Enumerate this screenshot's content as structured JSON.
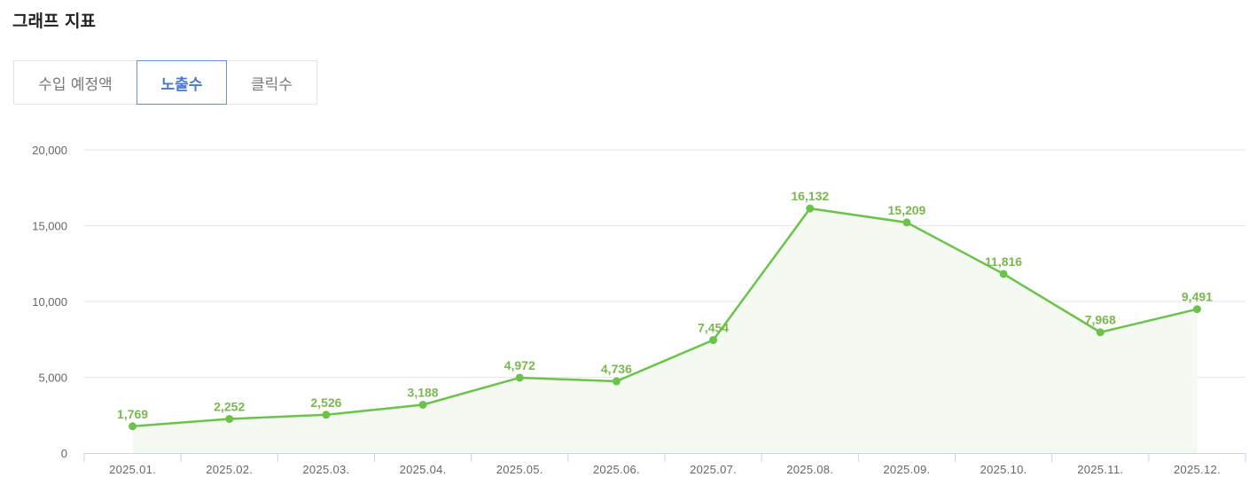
{
  "header": {
    "title": "그래프 지표"
  },
  "tabs": [
    {
      "label": "수입 예정액",
      "active": false
    },
    {
      "label": "노출수",
      "active": true
    },
    {
      "label": "클릭수",
      "active": false
    }
  ],
  "colors": {
    "line": "#6cc24a",
    "fill": "#f4f9f1",
    "label": "#7ab84f",
    "grid": "#e6e6e6",
    "active_tab": "#4a78d1"
  },
  "chart_data": {
    "type": "area",
    "categories": [
      "2025.01.",
      "2025.02.",
      "2025.03.",
      "2025.04.",
      "2025.05.",
      "2025.06.",
      "2025.07.",
      "2025.08.",
      "2025.09.",
      "2025.10.",
      "2025.11.",
      "2025.12."
    ],
    "values": [
      1769,
      2252,
      2526,
      3188,
      4972,
      4736,
      7454,
      16132,
      15209,
      11816,
      7968,
      9491
    ],
    "value_labels": [
      "1,769",
      "2,252",
      "2,526",
      "3,188",
      "4,972",
      "4,736",
      "7,454",
      "16,132",
      "15,209",
      "11,816",
      "7,968",
      "9,491"
    ],
    "ylim": [
      0,
      20000
    ],
    "yticks": [
      0,
      5000,
      10000,
      15000,
      20000
    ],
    "ytick_labels": [
      "0",
      "5,000",
      "10,000",
      "15,000",
      "20,000"
    ],
    "grid": true,
    "legend": "none",
    "title": "",
    "xlabel": "",
    "ylabel": ""
  }
}
